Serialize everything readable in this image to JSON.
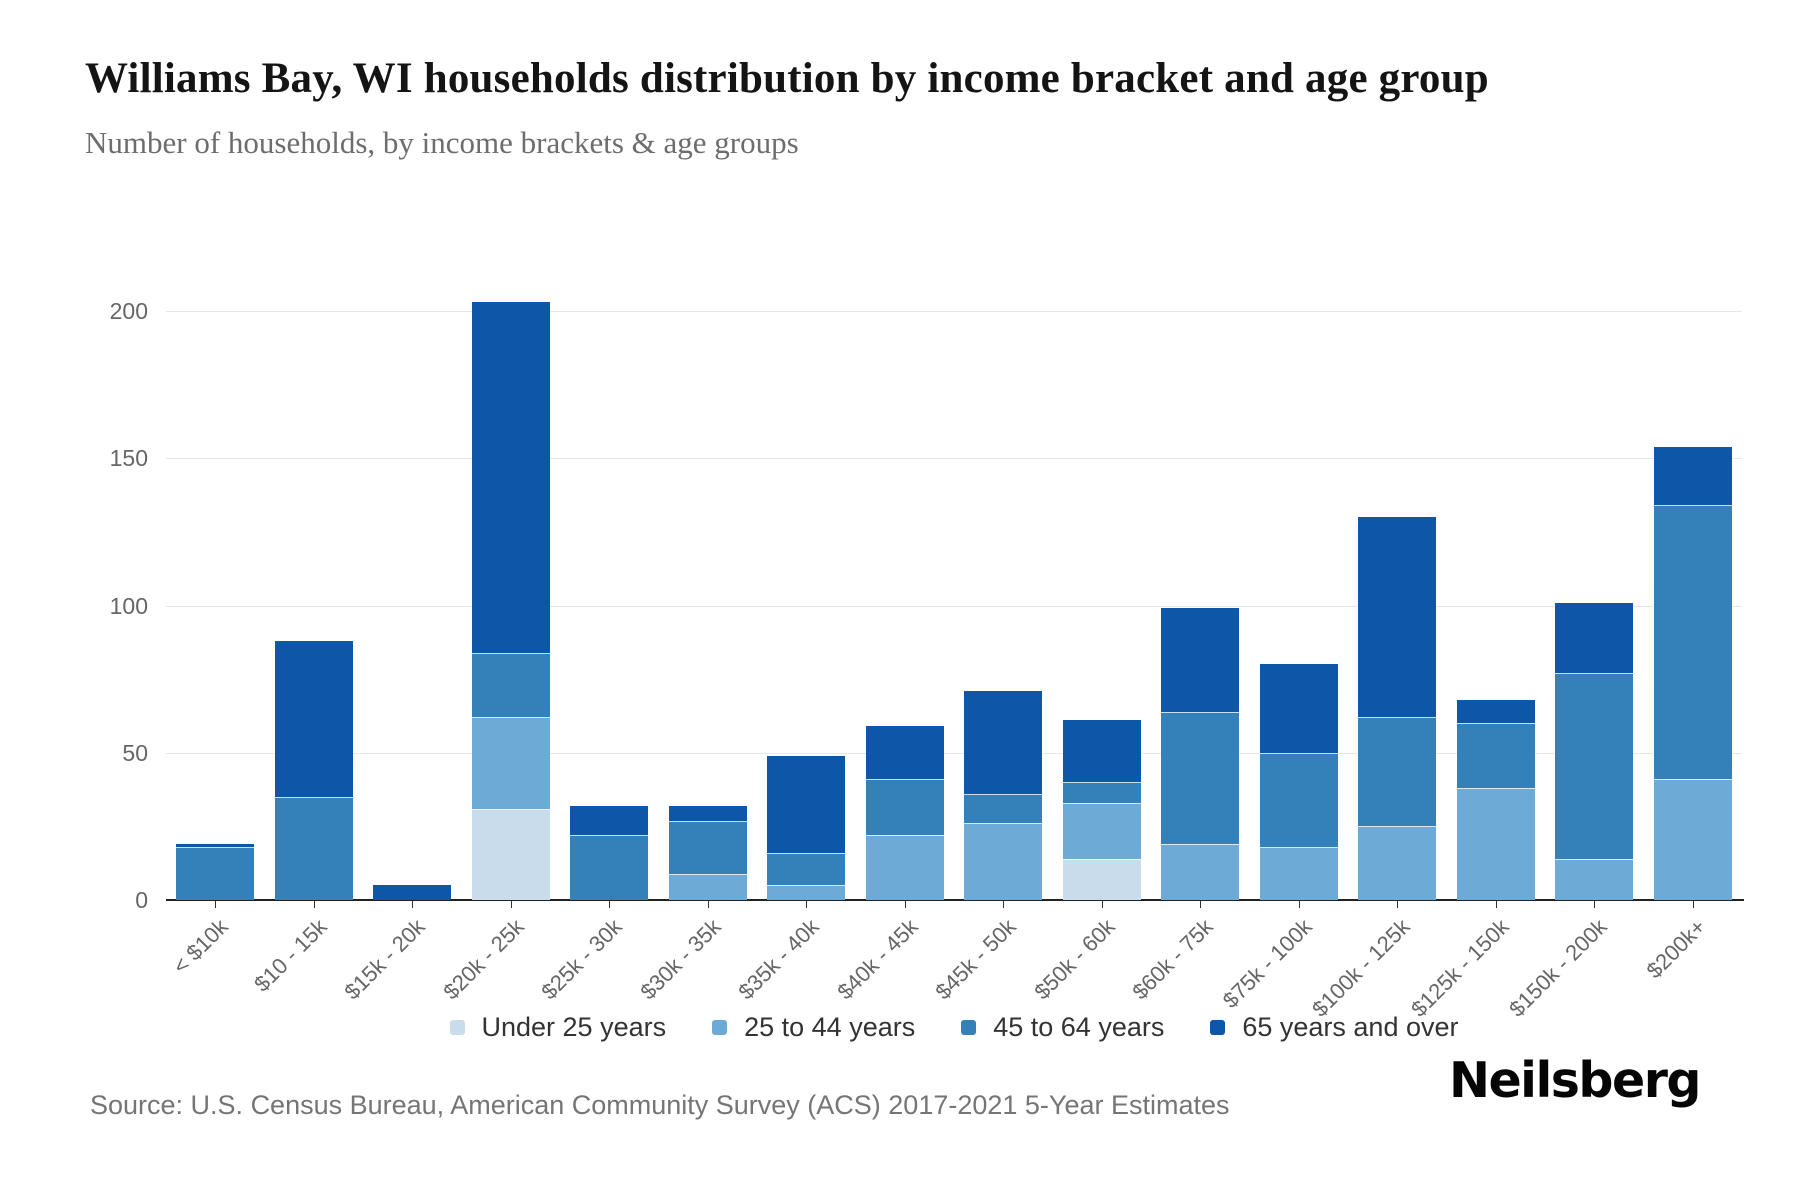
{
  "header": {
    "title": "Williams Bay, WI households distribution by income bracket and age group",
    "subtitle": "Number of households, by income brackets & age groups"
  },
  "chart_data": {
    "type": "bar",
    "stacked": true,
    "title": "Williams Bay, WI households distribution by income bracket and age group",
    "subtitle": "Number of households, by income brackets & age groups",
    "xlabel": "",
    "ylabel": "Number of households",
    "ylim": [
      0,
      200
    ],
    "yticks": [
      0,
      50,
      100,
      150,
      200
    ],
    "grid": true,
    "legend_position": "bottom",
    "categories": [
      "< $10k",
      "$10 - 15k",
      "$15k - 20k",
      "$20k - 25k",
      "$25k - 30k",
      "$30k - 35k",
      "$35k - 40k",
      "$40k - 45k",
      "$45k - 50k",
      "$50k - 60k",
      "$60k - 75k",
      "$75k - 100k",
      "$100k - 125k",
      "$125k - 150k",
      "$150k - 200k",
      "$200k+"
    ],
    "series": [
      {
        "name": "Under 25 years",
        "color": "#c9dcec",
        "values": [
          0,
          0,
          0,
          31,
          0,
          0,
          0,
          0,
          0,
          14,
          0,
          0,
          0,
          0,
          0,
          0
        ]
      },
      {
        "name": "25 to 44 years",
        "color": "#6dabd6",
        "values": [
          0,
          0,
          0,
          31,
          0,
          9,
          5,
          22,
          26,
          19,
          19,
          18,
          25,
          38,
          14,
          41
        ]
      },
      {
        "name": "45 to 64 years",
        "color": "#3480b8",
        "values": [
          18,
          35,
          0,
          22,
          22,
          18,
          11,
          19,
          10,
          7,
          45,
          32,
          37,
          22,
          63,
          93
        ]
      },
      {
        "name": "65 years and over",
        "color": "#0e57a8",
        "values": [
          1,
          53,
          5,
          119,
          10,
          5,
          33,
          18,
          35,
          21,
          35,
          30,
          68,
          8,
          24,
          20
        ]
      }
    ],
    "totals": [
      19,
      88,
      5,
      203,
      32,
      32,
      49,
      59,
      71,
      61,
      99,
      80,
      130,
      68,
      101,
      154
    ]
  },
  "footer": {
    "source": "Source: U.S. Census Bureau, American Community Survey (ACS) 2017-2021 5-Year Estimates",
    "logo": "Neilsberg"
  },
  "colors": {
    "accent_navy": "#0e57a8",
    "gridline": "#e7e7e7",
    "axis_line": "#222222",
    "tick_label": "#666666",
    "legend_text": "#333333",
    "source_text": "#757575"
  }
}
